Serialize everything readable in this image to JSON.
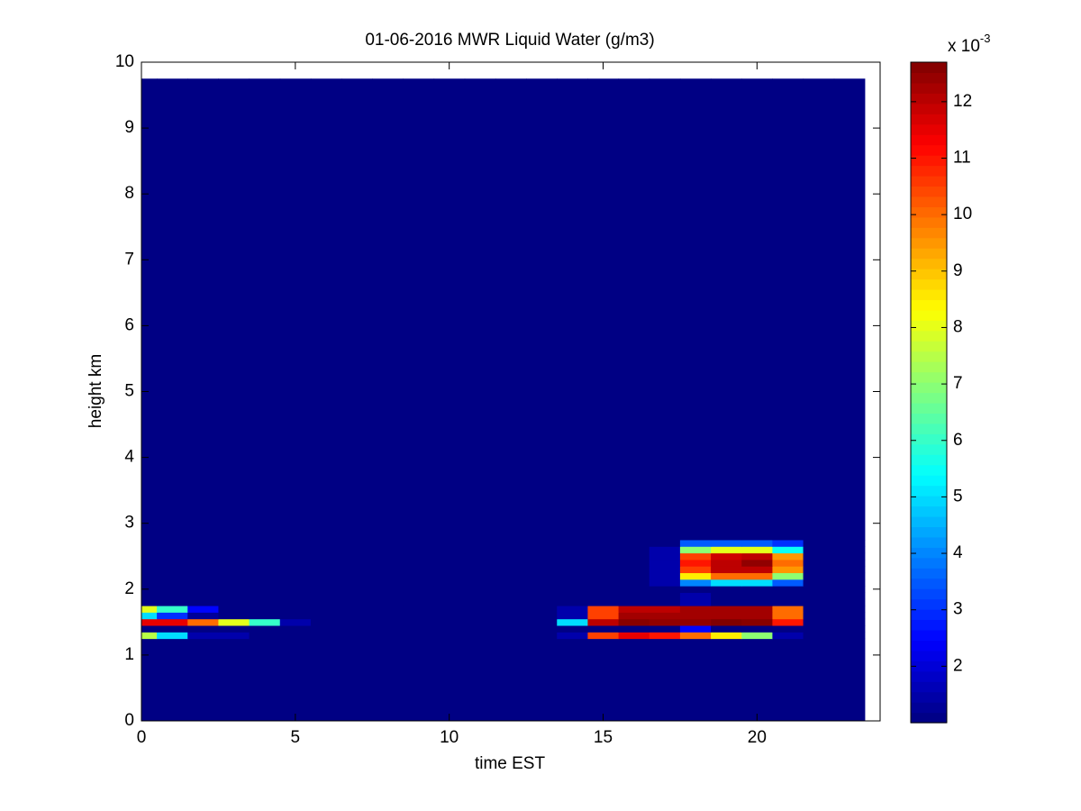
{
  "chart_data": {
    "type": "heatmap",
    "title": "01-06-2016 MWR Liquid Water (g/m3)",
    "x_label": "time EST",
    "y_label": "height km",
    "xlim": [
      0,
      24
    ],
    "ylim": [
      0,
      10
    ],
    "xticks": [
      0,
      5,
      10,
      15,
      20
    ],
    "yticks": [
      0,
      1,
      2,
      3,
      4,
      5,
      6,
      7,
      8,
      9,
      10
    ],
    "x_edges": [
      0,
      0.5,
      1.5,
      2.5,
      3.5,
      4.5,
      5.5,
      6.5,
      7.5,
      8.5,
      9.5,
      10.5,
      11.5,
      12.5,
      13.5,
      14.5,
      15.5,
      16.5,
      17.5,
      18.5,
      19.5,
      20.5,
      21.5,
      22.5,
      23.5
    ],
    "y_edges": [
      0,
      1.25,
      1.35,
      1.45,
      1.55,
      1.65,
      1.75,
      1.85,
      1.95,
      2.05,
      2.15,
      2.25,
      2.35,
      2.45,
      2.55,
      2.65,
      2.75,
      9.75
    ],
    "z": [
      [
        1.05,
        1.05,
        1.05,
        1.05,
        1.05,
        1.05,
        1.05,
        1.05,
        1.05,
        1.05,
        1.05,
        1.05,
        1.05,
        1.05,
        1.05,
        1.05,
        1.05,
        1.05,
        1.05,
        1.05,
        1.05,
        1.05,
        1.05,
        1.05
      ],
      [
        7.5,
        5,
        1.5,
        1.5,
        1.05,
        1.05,
        1.05,
        1.05,
        1.05,
        1.05,
        1.05,
        1.05,
        1.05,
        1.05,
        1.5,
        10.5,
        11.5,
        11,
        10,
        8.5,
        7,
        1.5,
        1.05,
        1.05
      ],
      [
        1.05,
        1.05,
        1.05,
        1.05,
        1.05,
        1.05,
        1.05,
        1.05,
        1.05,
        1.05,
        1.05,
        1.05,
        1.05,
        1.05,
        1.05,
        1.05,
        1.05,
        1.05,
        2.5,
        1.05,
        1.05,
        1.05,
        1.05,
        1.05
      ],
      [
        11.5,
        11.5,
        10,
        8,
        6,
        1.5,
        1.05,
        1.05,
        1.05,
        1.05,
        1.05,
        1.05,
        1.05,
        1.05,
        5,
        12,
        12.6,
        12.5,
        12.5,
        12.7,
        12.6,
        11,
        1.05,
        1.05
      ],
      [
        5,
        3,
        1.3,
        1.05,
        1.05,
        1.05,
        1.05,
        1.05,
        1.05,
        1.05,
        1.05,
        1.05,
        1.05,
        1.05,
        1.5,
        10.5,
        12.3,
        12.3,
        12.3,
        12.3,
        12.3,
        10,
        1.05,
        1.05
      ],
      [
        8,
        6,
        2.5,
        1.05,
        1.05,
        1.05,
        1.05,
        1.05,
        1.05,
        1.05,
        1.05,
        1.05,
        1.05,
        1.05,
        1.5,
        10.5,
        12,
        12,
        12.3,
        12.3,
        12.3,
        10,
        1.05,
        1.05
      ],
      [
        1.05,
        1.05,
        1.05,
        1.05,
        1.05,
        1.05,
        1.05,
        1.05,
        1.05,
        1.05,
        1.05,
        1.05,
        1.05,
        1.05,
        1.05,
        1.05,
        1.05,
        1.05,
        1.5,
        1.05,
        1.05,
        1.05,
        1.05,
        1.05
      ],
      [
        1.05,
        1.05,
        1.05,
        1.05,
        1.05,
        1.05,
        1.05,
        1.05,
        1.05,
        1.05,
        1.05,
        1.05,
        1.05,
        1.05,
        1.05,
        1.05,
        1.05,
        1.05,
        1.5,
        1.05,
        1.05,
        1.05,
        1.05,
        1.05
      ],
      [
        1.05,
        1.05,
        1.05,
        1.05,
        1.05,
        1.05,
        1.05,
        1.05,
        1.05,
        1.05,
        1.05,
        1.05,
        1.05,
        1.05,
        1.05,
        1.05,
        1.05,
        1.05,
        1.05,
        1.05,
        1.05,
        1.05,
        1.05,
        1.05
      ],
      [
        1.05,
        1.05,
        1.05,
        1.05,
        1.05,
        1.05,
        1.05,
        1.05,
        1.05,
        1.05,
        1.05,
        1.05,
        1.05,
        1.05,
        1.05,
        1.05,
        1.05,
        1.5,
        4,
        5,
        5,
        3.5,
        1.05,
        1.05
      ],
      [
        1.05,
        1.05,
        1.05,
        1.05,
        1.05,
        1.05,
        1.05,
        1.05,
        1.05,
        1.05,
        1.05,
        1.05,
        1.05,
        1.05,
        1.05,
        1.05,
        1.05,
        1.5,
        8.5,
        10,
        10,
        7,
        1.05,
        1.05
      ],
      [
        1.05,
        1.05,
        1.05,
        1.05,
        1.05,
        1.05,
        1.05,
        1.05,
        1.05,
        1.05,
        1.05,
        1.05,
        1.05,
        1.05,
        1.05,
        1.05,
        1.05,
        1.5,
        10.5,
        12,
        12,
        9.5,
        1.05,
        1.05
      ],
      [
        1.05,
        1.05,
        1.05,
        1.05,
        1.05,
        1.05,
        1.05,
        1.05,
        1.05,
        1.05,
        1.05,
        1.05,
        1.05,
        1.05,
        1.05,
        1.05,
        1.05,
        1.5,
        11,
        12,
        12.5,
        10,
        1.05,
        1.05
      ],
      [
        1.05,
        1.05,
        1.05,
        1.05,
        1.05,
        1.05,
        1.05,
        1.05,
        1.05,
        1.05,
        1.05,
        1.05,
        1.05,
        1.05,
        1.05,
        1.05,
        1.05,
        1.5,
        10.5,
        11.8,
        12,
        9.5,
        1.05,
        1.05
      ],
      [
        1.05,
        1.05,
        1.05,
        1.05,
        1.05,
        1.05,
        1.05,
        1.05,
        1.05,
        1.05,
        1.05,
        1.05,
        1.05,
        1.05,
        1.05,
        1.05,
        1.05,
        1.5,
        7,
        8,
        8,
        5.5,
        1.05,
        1.05
      ],
      [
        1.05,
        1.05,
        1.05,
        1.05,
        1.05,
        1.05,
        1.05,
        1.05,
        1.05,
        1.05,
        1.05,
        1.05,
        1.05,
        1.05,
        1.05,
        1.05,
        1.05,
        1.05,
        3.5,
        3.5,
        3.5,
        3,
        1.05,
        1.05
      ],
      [
        1.05,
        1.05,
        1.05,
        1.05,
        1.05,
        1.05,
        1.05,
        1.05,
        1.05,
        1.05,
        1.05,
        1.05,
        1.05,
        1.05,
        1.05,
        1.05,
        1.05,
        1.05,
        1.05,
        1.05,
        1.05,
        1.05,
        1.05,
        1.05
      ]
    ],
    "colormap": "jet",
    "colorbar": {
      "label": "x 10",
      "exponent": "-3",
      "lim": [
        1.0,
        12.7
      ],
      "ticks": [
        2,
        3,
        4,
        5,
        6,
        7,
        8,
        9,
        10,
        11,
        12
      ]
    }
  }
}
